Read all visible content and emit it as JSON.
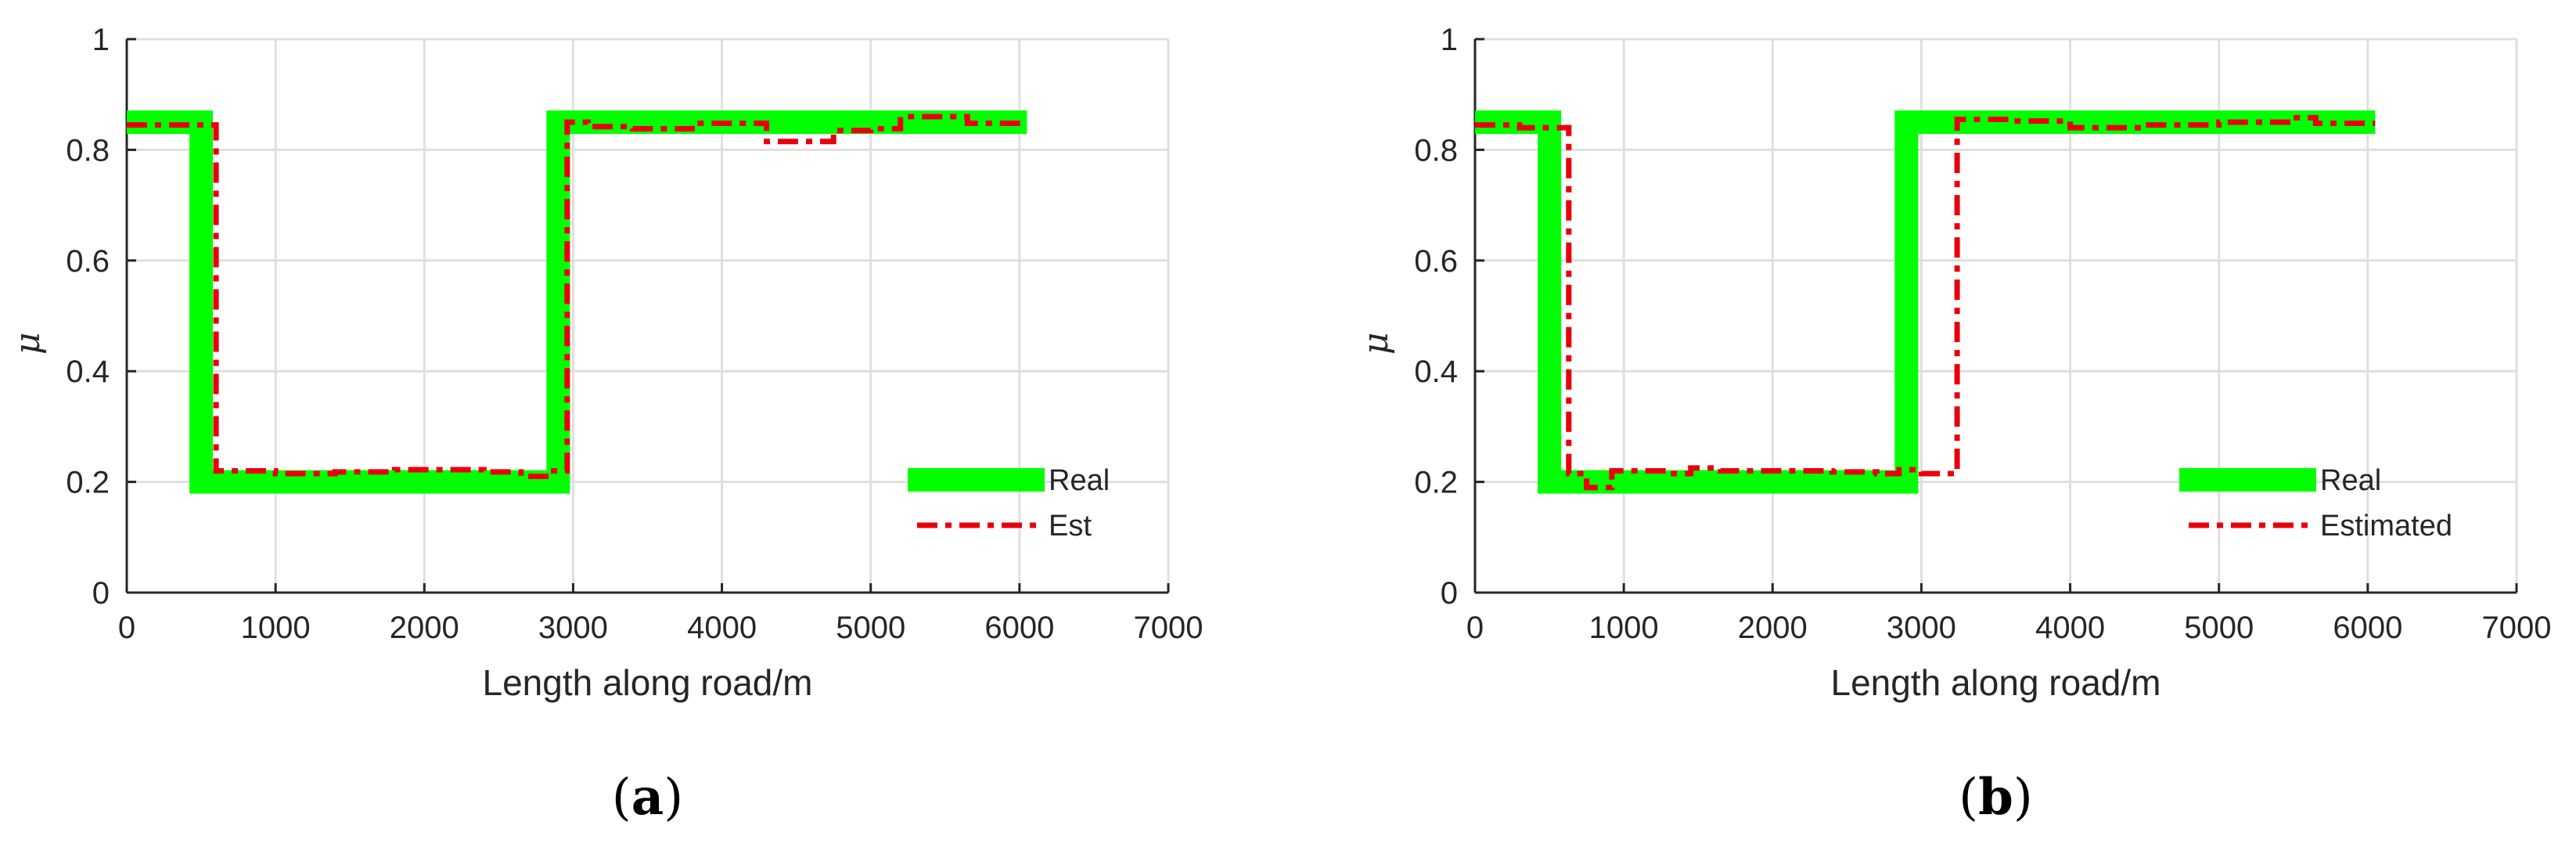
{
  "chart_data": [
    {
      "type": "line",
      "panel_label_open": "(",
      "panel_label": "a",
      "panel_label_close": ")",
      "xlabel": "Length along road/m",
      "ylabel": "μ",
      "xlim": [
        0,
        7000
      ],
      "ylim": [
        0,
        1
      ],
      "xticks": [
        "0",
        "1000",
        "2000",
        "3000",
        "4000",
        "5000",
        "6000",
        "7000"
      ],
      "yticks": [
        "0",
        "0.2",
        "0.4",
        "0.6",
        "0.8",
        "1"
      ],
      "grid": true,
      "legend_position": "bottom-right",
      "series": [
        {
          "name": "Real",
          "color": "#00ff00",
          "style": "solid-thick",
          "x": [
            0,
            500,
            500,
            2900,
            2900,
            6050
          ],
          "y": [
            0.85,
            0.85,
            0.2,
            0.2,
            0.85,
            0.85
          ]
        },
        {
          "name": "Est",
          "color": "#e8000b",
          "style": "dash-dot",
          "x": [
            0,
            600,
            600,
            1000,
            1000,
            1400,
            1400,
            1800,
            1800,
            2400,
            2400,
            2650,
            2650,
            2850,
            2850,
            2960,
            2960,
            3100,
            3100,
            3400,
            3400,
            3800,
            3800,
            4300,
            4300,
            4750,
            4750,
            5000,
            5000,
            5200,
            5200,
            5650,
            5650,
            6050
          ],
          "y": [
            0.845,
            0.845,
            0.22,
            0.22,
            0.215,
            0.215,
            0.218,
            0.218,
            0.222,
            0.222,
            0.218,
            0.218,
            0.21,
            0.21,
            0.22,
            0.22,
            0.85,
            0.85,
            0.842,
            0.842,
            0.838,
            0.838,
            0.848,
            0.848,
            0.815,
            0.815,
            0.835,
            0.835,
            0.838,
            0.838,
            0.86,
            0.86,
            0.848,
            0.848
          ]
        }
      ]
    },
    {
      "type": "line",
      "panel_label_open": "(",
      "panel_label": "b",
      "panel_label_close": ")",
      "xlabel": "Length along road/m",
      "ylabel": "μ",
      "xlim": [
        0,
        7000
      ],
      "ylim": [
        0,
        1
      ],
      "xticks": [
        "0",
        "1000",
        "2000",
        "3000",
        "4000",
        "5000",
        "6000",
        "7000"
      ],
      "yticks": [
        "0",
        "0.2",
        "0.4",
        "0.6",
        "0.8",
        "1"
      ],
      "grid": true,
      "legend_position": "bottom-right",
      "series": [
        {
          "name": "Real",
          "color": "#00ff00",
          "style": "solid-thick",
          "x": [
            0,
            500,
            500,
            2900,
            2900,
            6050
          ],
          "y": [
            0.85,
            0.85,
            0.2,
            0.2,
            0.85,
            0.85
          ]
        },
        {
          "name": "Estimated",
          "color": "#e8000b",
          "style": "dash-dot",
          "x": [
            0,
            300,
            300,
            630,
            630,
            750,
            750,
            920,
            920,
            1300,
            1300,
            1450,
            1450,
            1650,
            1650,
            2400,
            2400,
            2700,
            2700,
            2850,
            2850,
            3000,
            3000,
            3240,
            3240,
            3600,
            3600,
            4000,
            4000,
            4500,
            4500,
            5000,
            5000,
            5500,
            5500,
            5650,
            5650,
            6050
          ],
          "y": [
            0.845,
            0.845,
            0.84,
            0.84,
            0.215,
            0.215,
            0.19,
            0.19,
            0.22,
            0.22,
            0.215,
            0.215,
            0.225,
            0.225,
            0.22,
            0.22,
            0.218,
            0.218,
            0.215,
            0.215,
            0.222,
            0.222,
            0.215,
            0.215,
            0.855,
            0.855,
            0.852,
            0.852,
            0.84,
            0.84,
            0.845,
            0.845,
            0.85,
            0.85,
            0.858,
            0.858,
            0.848,
            0.848
          ]
        }
      ]
    }
  ]
}
